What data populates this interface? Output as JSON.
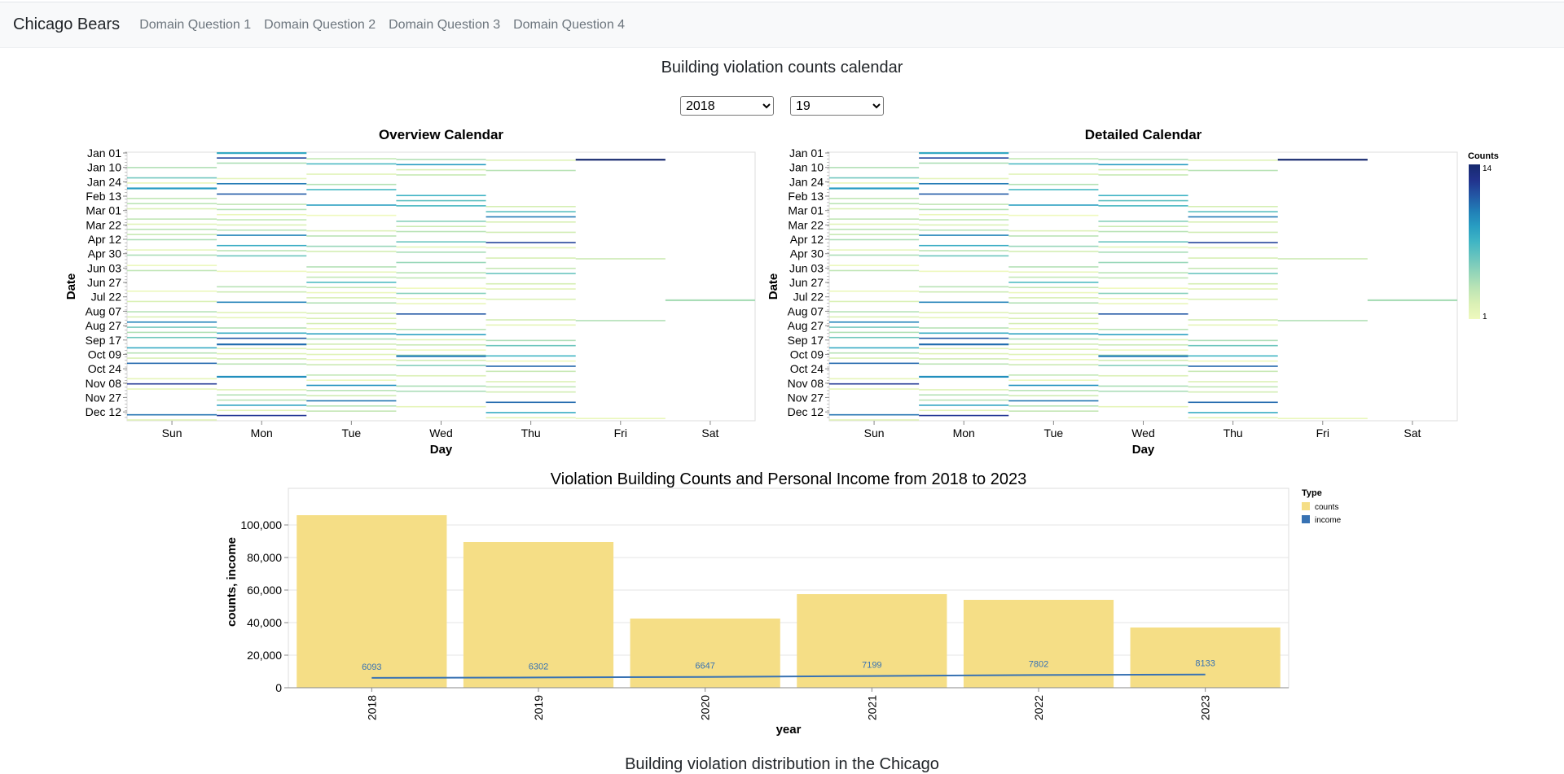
{
  "navbar": {
    "brand": "Chicago Bears",
    "links": [
      "Domain Question 1",
      "Domain Question 2",
      "Domain Question 3",
      "Domain Question 4"
    ]
  },
  "page_title": "Building violation counts calendar",
  "controls": {
    "year_options": [
      "2018"
    ],
    "year_selected": "2018",
    "week_options": [
      "19"
    ],
    "week_selected": "19"
  },
  "bottom_heading": "Building violation distribution in the Chicago",
  "chart_data": [
    {
      "type": "heatmap",
      "title": "Overview Calendar",
      "xlabel": "Day",
      "ylabel": "Date",
      "x_categories": [
        "Sun",
        "Mon",
        "Tue",
        "Wed",
        "Thu",
        "Fri",
        "Sat"
      ],
      "y_tick_labels": [
        "Jan 01",
        "Jan 10",
        "Jan 24",
        "Feb 13",
        "Mar 01",
        "Mar 22",
        "Apr 12",
        "Apr 30",
        "Jun 03",
        "Jun 27",
        "Jul 22",
        "Aug 07",
        "Aug 27",
        "Sep 17",
        "Oct 09",
        "Oct 24",
        "Nov 08",
        "Nov 27",
        "Dec 12"
      ],
      "color_scale": "yellow-green-blue",
      "color_range": [
        1,
        14
      ],
      "legend": null
    },
    {
      "type": "heatmap",
      "title": "Detailed Calendar",
      "xlabel": "Day",
      "ylabel": "Date",
      "x_categories": [
        "Sun",
        "Mon",
        "Tue",
        "Wed",
        "Thu",
        "Fri",
        "Sat"
      ],
      "y_tick_labels": [
        "Jan 01",
        "Jan 10",
        "Jan 24",
        "Feb 13",
        "Mar 01",
        "Mar 22",
        "Apr 12",
        "Apr 30",
        "Jun 03",
        "Jun 27",
        "Jul 22",
        "Aug 07",
        "Aug 27",
        "Sep 17",
        "Oct 09",
        "Oct 24",
        "Nov 08",
        "Nov 27",
        "Dec 12"
      ],
      "color_scale": "yellow-green-blue",
      "color_range": [
        1,
        14
      ],
      "legend": {
        "title": "Counts",
        "min_label": "1",
        "max_label": "14",
        "placement": "right"
      }
    },
    {
      "type": "bar",
      "title": "Violation Building Counts and Personal Income from 2018 to 2023",
      "xlabel": "year",
      "ylabel": "counts, income",
      "categories": [
        "2018",
        "2019",
        "2020",
        "2021",
        "2022",
        "2023"
      ],
      "series": [
        {
          "name": "counts",
          "type": "bar",
          "values": [
            106000,
            89500,
            42500,
            57500,
            54000,
            37000
          ],
          "color": "#f5de86"
        },
        {
          "name": "income",
          "type": "line",
          "values": [
            6093,
            6302,
            6647,
            7199,
            7802,
            8133
          ],
          "labels": [
            "6093",
            "6302",
            "6647",
            "7199",
            "7802",
            "8133"
          ],
          "color": "#3872b3"
        }
      ],
      "ylim": [
        0,
        110000
      ],
      "y_ticks": [
        0,
        20000,
        40000,
        60000,
        80000,
        100000
      ],
      "y_tick_labels": [
        "0",
        "20,000",
        "40,000",
        "60,000",
        "80,000",
        "100,000"
      ],
      "grid": true,
      "legend": {
        "title": "Type",
        "placement": "top-right"
      }
    }
  ]
}
